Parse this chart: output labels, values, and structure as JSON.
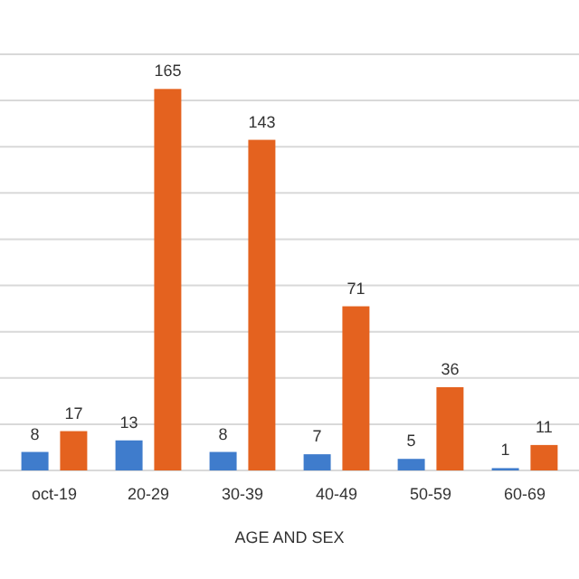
{
  "chart_data": {
    "type": "bar",
    "xlabel": "AGE AND SEX",
    "categories": [
      "oct-19",
      "20-29",
      "30-39",
      "40-49",
      "50-59",
      "60-69"
    ],
    "series": [
      {
        "color": "#3f7ccc",
        "values": [
          8,
          13,
          8,
          7,
          5,
          1
        ]
      },
      {
        "color": "#e4621f",
        "values": [
          17,
          165,
          143,
          71,
          36,
          11
        ]
      }
    ],
    "ylim": [
      0,
      180
    ],
    "yticks": [
      {
        "value": 0,
        "label": null
      },
      {
        "value": 20,
        "label": null
      },
      {
        "value": 40,
        "label": null
      },
      {
        "value": 60,
        "label": null
      },
      {
        "value": 80,
        "label": null
      },
      {
        "value": 100,
        "label": null
      },
      {
        "value": 120,
        "label": null
      },
      {
        "value": 140,
        "label": null
      },
      {
        "value": 160,
        "label": null
      },
      {
        "value": 180,
        "label": null
      }
    ],
    "grid": "y",
    "tick_labels": "x",
    "data_labels": true
  }
}
